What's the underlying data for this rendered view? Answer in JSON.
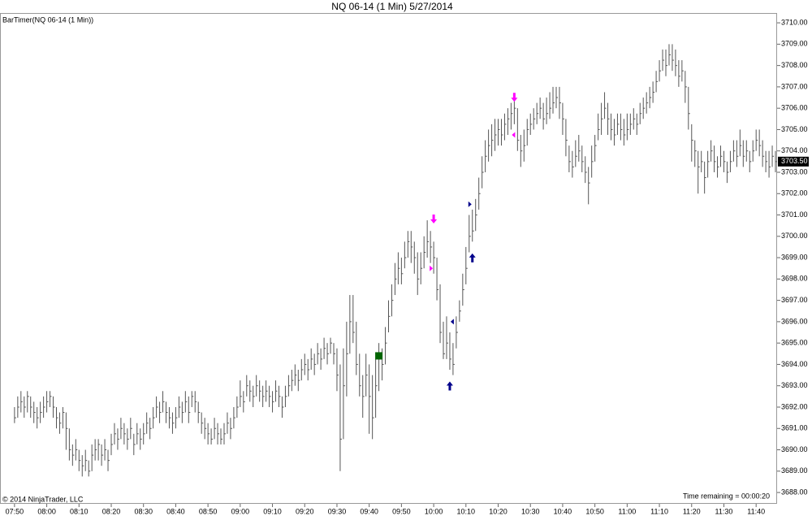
{
  "chart_data": {
    "type": "ohlc",
    "title": "NQ 06-14 (1 Min)  5/27/2014",
    "indicator_label": "BarTimer(NQ 06-14 (1 Min))",
    "copyright": "© 2014 NinjaTrader, LLC",
    "timer_text": "Time remaining = 00:00:20",
    "bar_color": "#555555",
    "xlim": [
      -4.5,
      236.5
    ],
    "ylim": [
      3687.47,
      3710.46
    ],
    "xticks": [
      {
        "value": 0,
        "label": "07:50"
      },
      {
        "value": 10,
        "label": "08:00"
      },
      {
        "value": 20,
        "label": "08:10"
      },
      {
        "value": 30,
        "label": "08:20"
      },
      {
        "value": 40,
        "label": "08:30"
      },
      {
        "value": 50,
        "label": "08:40"
      },
      {
        "value": 60,
        "label": "08:50"
      },
      {
        "value": 70,
        "label": "09:00"
      },
      {
        "value": 80,
        "label": "09:10"
      },
      {
        "value": 90,
        "label": "09:20"
      },
      {
        "value": 100,
        "label": "09:30"
      },
      {
        "value": 110,
        "label": "09:40"
      },
      {
        "value": 120,
        "label": "09:50"
      },
      {
        "value": 130,
        "label": "10:00"
      },
      {
        "value": 140,
        "label": "10:10"
      },
      {
        "value": 150,
        "label": "10:20"
      },
      {
        "value": 160,
        "label": "10:30"
      },
      {
        "value": 170,
        "label": "10:40"
      },
      {
        "value": 180,
        "label": "10:50"
      },
      {
        "value": 190,
        "label": "11:00"
      },
      {
        "value": 200,
        "label": "11:10"
      },
      {
        "value": 210,
        "label": "11:20"
      },
      {
        "value": 220,
        "label": "11:30"
      },
      {
        "value": 230,
        "label": "11:40"
      }
    ],
    "yticks": [
      {
        "value": 3688,
        "label": "3688.00"
      },
      {
        "value": 3689,
        "label": "3689.00"
      },
      {
        "value": 3690,
        "label": "3690.00"
      },
      {
        "value": 3691,
        "label": "3691.00"
      },
      {
        "value": 3692,
        "label": "3692.00"
      },
      {
        "value": 3693,
        "label": "3693.00"
      },
      {
        "value": 3694,
        "label": "3694.00"
      },
      {
        "value": 3695,
        "label": "3695.00"
      },
      {
        "value": 3696,
        "label": "3696.00"
      },
      {
        "value": 3697,
        "label": "3697.00"
      },
      {
        "value": 3698,
        "label": "3698.00"
      },
      {
        "value": 3699,
        "label": "3699.00"
      },
      {
        "value": 3700,
        "label": "3700.00"
      },
      {
        "value": 3701,
        "label": "3701.00"
      },
      {
        "value": 3702,
        "label": "3702.00"
      },
      {
        "value": 3703,
        "label": "3703.00"
      },
      {
        "value": 3704,
        "label": "3704.00"
      },
      {
        "value": 3705,
        "label": "3705.00"
      },
      {
        "value": 3706,
        "label": "3706.00"
      },
      {
        "value": 3707,
        "label": "3707.00"
      },
      {
        "value": 3708,
        "label": "3708.00"
      },
      {
        "value": 3709,
        "label": "3709.00"
      },
      {
        "value": 3710,
        "label": "3710.00"
      }
    ],
    "last_price": {
      "value": 3703.5,
      "label": "3703.50"
    },
    "high": [
      3692,
      3692.5,
      3692.75,
      3692.5,
      3692.75,
      3692.5,
      3692.25,
      3692,
      3692.25,
      3692.5,
      3692.75,
      3692.75,
      3692.5,
      3692,
      3691.75,
      3692,
      3691.75,
      3691,
      3690.25,
      3690.5,
      3690,
      3689.75,
      3690,
      3689.5,
      3690.25,
      3690.5,
      3690.5,
      3690.25,
      3690.5,
      3690,
      3690.75,
      3691.25,
      3691,
      3691.5,
      3691.25,
      3691,
      3691.5,
      3690.75,
      3691.25,
      3691,
      3691.25,
      3691.75,
      3691.5,
      3692,
      3692.5,
      3692.25,
      3692.75,
      3692.25,
      3692,
      3691.75,
      3692,
      3692.5,
      3692.25,
      3692.75,
      3692.5,
      3692.75,
      3692.75,
      3692.25,
      3691.75,
      3691.5,
      3691.25,
      3691,
      3691.5,
      3691.25,
      3691,
      3691.25,
      3691.75,
      3691.5,
      3692,
      3692.5,
      3693.25,
      3692.75,
      3693.5,
      3693.25,
      3693,
      3693.5,
      3693.25,
      3693,
      3693.25,
      3693,
      3692.75,
      3693.25,
      3693,
      3692.5,
      3693,
      3693.5,
      3693.75,
      3694,
      3693.75,
      3694.25,
      3694.5,
      3694.25,
      3694.75,
      3694.5,
      3695,
      3694.75,
      3695.25,
      3695,
      3695.25,
      3695,
      3694.75,
      3694,
      3694.75,
      3696,
      3697.25,
      3697.25,
      3696,
      3694.5,
      3693.5,
      3694.5,
      3694,
      3693.5,
      3694.25,
      3695,
      3694.75,
      3695.75,
      3697,
      3697.75,
      3698.75,
      3699.25,
      3699,
      3699.75,
      3700.25,
      3700.25,
      3699.75,
      3699.25,
      3699.25,
      3700,
      3700.75,
      3700.25,
      3699.75,
      3699,
      3697.75,
      3696,
      3696.25,
      3695.5,
      3695,
      3696.25,
      3697,
      3698.25,
      3699.5,
      3701,
      3701.25,
      3701.75,
      3702.75,
      3703.75,
      3704.5,
      3705,
      3705.25,
      3705.5,
      3705.5,
      3705.5,
      3705.75,
      3706,
      3706.25,
      3706.5,
      3706,
      3704.75,
      3705,
      3705.5,
      3705.75,
      3706,
      3706.25,
      3706.5,
      3706.25,
      3706.5,
      3706.75,
      3707,
      3707,
      3707,
      3706.25,
      3705.5,
      3704.25,
      3704,
      3704.5,
      3704.75,
      3704.25,
      3703.75,
      3703.25,
      3704.25,
      3704.75,
      3705.75,
      3706.25,
      3706.75,
      3706.25,
      3705.75,
      3705.5,
      3705.75,
      3705.75,
      3705.5,
      3705.75,
      3705.75,
      3706,
      3705.75,
      3706.25,
      3706.5,
      3706.75,
      3707,
      3707.25,
      3707.75,
      3708.25,
      3708.75,
      3708.75,
      3709,
      3709,
      3708.75,
      3708.25,
      3708.25,
      3707.75,
      3707,
      3705.25,
      3704.5,
      3704,
      3704,
      3703.5,
      3704,
      3704.5,
      3704.25,
      3703.75,
      3704.25,
      3704,
      3703.5,
      3704,
      3704.5,
      3704.5,
      3705,
      3704.5,
      3704.5,
      3704,
      3704.5,
      3705,
      3705,
      3704.5,
      3704,
      3704,
      3704.25,
      3704
    ],
    "low": [
      3691.25,
      3691.5,
      3691.75,
      3691.5,
      3691.75,
      3691.5,
      3691.25,
      3691,
      3691.25,
      3691.5,
      3691.75,
      3692,
      3691.5,
      3691,
      3690.75,
      3691,
      3690,
      3689.5,
      3689.25,
      3689.5,
      3689,
      3688.75,
      3689,
      3688.75,
      3689,
      3689.5,
      3689.5,
      3689.25,
      3689.5,
      3689,
      3689.75,
      3690.25,
      3690,
      3690.5,
      3690.25,
      3690,
      3690.5,
      3689.75,
      3690.25,
      3690,
      3690.25,
      3690.75,
      3690.5,
      3691,
      3691.5,
      3691.25,
      3691.75,
      3691.25,
      3691,
      3690.75,
      3691,
      3691.5,
      3691.25,
      3691.75,
      3691.25,
      3692,
      3691.75,
      3691.25,
      3690.75,
      3690.5,
      3690.25,
      3690.25,
      3690.5,
      3690.25,
      3690.25,
      3690.25,
      3690.75,
      3690.5,
      3691,
      3691.5,
      3692,
      3691.75,
      3692.5,
      3692.25,
      3692,
      3692.5,
      3692.25,
      3692,
      3692.25,
      3692,
      3691.75,
      3692.25,
      3692,
      3691.5,
      3692,
      3692.5,
      3692.75,
      3693,
      3692.75,
      3693.25,
      3693.5,
      3693.25,
      3693.75,
      3693.5,
      3694,
      3693.75,
      3694.25,
      3694,
      3694.5,
      3694,
      3692.75,
      3689,
      3690.5,
      3692.5,
      3694.5,
      3695,
      3693.5,
      3692.5,
      3691.5,
      3692.5,
      3690.75,
      3690.5,
      3691.5,
      3692.75,
      3693.25,
      3694,
      3695.5,
      3696.25,
      3697.25,
      3697.75,
      3697.75,
      3698.5,
      3699,
      3698.75,
      3698.25,
      3697.25,
      3697.75,
      3698.5,
      3699,
      3698.75,
      3698.25,
      3697,
      3695,
      3694.25,
      3694.25,
      3693.75,
      3693.5,
      3694.75,
      3696,
      3696.75,
      3697.75,
      3699.25,
      3699.75,
      3700.25,
      3701.25,
      3702.25,
      3703,
      3703.5,
      3703.75,
      3704,
      3704.25,
      3704.25,
      3704.5,
      3704.75,
      3705,
      3705.25,
      3704,
      3703.25,
      3703.5,
      3704.25,
      3704.75,
      3705,
      3705.25,
      3705.5,
      3705,
      3705.25,
      3705.5,
      3705.75,
      3706,
      3705.5,
      3704.75,
      3703.75,
      3703,
      3702.75,
      3703.25,
      3703.5,
      3703,
      3702.5,
      3701.5,
      3702.75,
      3703.5,
      3704.5,
      3704.75,
      3705.5,
      3704.75,
      3704.5,
      3704.25,
      3704.75,
      3704.5,
      3704.25,
      3704.5,
      3704.75,
      3705,
      3704.75,
      3705.25,
      3705.5,
      3705.75,
      3706,
      3706.25,
      3706.75,
      3707.25,
      3707.75,
      3707.5,
      3708,
      3707.75,
      3707.5,
      3707,
      3707.25,
      3706.25,
      3705,
      3703.5,
      3703.25,
      3702,
      3703,
      3702,
      3702.75,
      3703.5,
      3703,
      3702.75,
      3703.25,
      3703,
      3702.5,
      3703,
      3703.5,
      3703.25,
      3703.75,
      3703.25,
      3703.5,
      3703,
      3703.5,
      3704,
      3703.75,
      3703.25,
      3703,
      3702.75,
      3703.25,
      3703
    ],
    "close": [
      3691.5,
      3692,
      3692.25,
      3692,
      3692.5,
      3692,
      3691.75,
      3691.5,
      3691.75,
      3692,
      3692.25,
      3692.5,
      3692,
      3691.5,
      3691.25,
      3691.75,
      3691,
      3690,
      3689.75,
      3690,
      3689.5,
      3689.25,
      3689.5,
      3689,
      3689.75,
      3690,
      3690.25,
      3689.75,
      3690,
      3689.5,
      3690.25,
      3690.75,
      3690.5,
      3691,
      3690.75,
      3690.5,
      3691,
      3690.25,
      3690.75,
      3690.5,
      3690.75,
      3691.25,
      3691,
      3691.5,
      3692,
      3691.75,
      3692.25,
      3691.75,
      3691.5,
      3691.25,
      3691.5,
      3692,
      3691.75,
      3692.25,
      3691.75,
      3692.5,
      3692.25,
      3691.75,
      3691.25,
      3691,
      3690.75,
      3690.5,
      3691,
      3690.75,
      3690.5,
      3690.75,
      3691.25,
      3691,
      3691.5,
      3692,
      3692.5,
      3692.25,
      3693,
      3692.75,
      3692.5,
      3693,
      3692.75,
      3692.5,
      3692.75,
      3692.5,
      3692.25,
      3692.75,
      3692.5,
      3692,
      3692.5,
      3693,
      3693.25,
      3693.5,
      3693.25,
      3693.75,
      3694,
      3693.75,
      3694.25,
      3694,
      3694.5,
      3694.25,
      3694.75,
      3694.5,
      3695,
      3694.5,
      3693.5,
      3690.5,
      3693,
      3694.5,
      3696,
      3695.5,
      3694,
      3693,
      3692.5,
      3693.5,
      3692.5,
      3691.5,
      3693,
      3694.25,
      3694,
      3695,
      3696.25,
      3697,
      3698,
      3698.5,
      3698.25,
      3699,
      3699.75,
      3699.5,
      3699,
      3698,
      3698.5,
      3699.25,
      3699.75,
      3699.5,
      3699,
      3697.5,
      3695.5,
      3694.5,
      3695,
      3694.25,
      3694,
      3695.5,
      3696.5,
      3697.5,
      3698.5,
      3700,
      3700.25,
      3701,
      3702,
      3703,
      3703.75,
      3704.25,
      3704.5,
      3704.75,
      3705,
      3704.75,
      3705.25,
      3705.5,
      3705.75,
      3706,
      3704.5,
      3704,
      3704.25,
      3705,
      3705.25,
      3705.5,
      3705.75,
      3706,
      3705.5,
      3705.75,
      3706,
      3706.25,
      3706.5,
      3706.25,
      3705.5,
      3704.5,
      3703.5,
      3703.25,
      3703.75,
      3704,
      3703.5,
      3703,
      3702.5,
      3703.5,
      3704.25,
      3705,
      3705.5,
      3706,
      3705.5,
      3705,
      3704.75,
      3705.25,
      3705,
      3704.75,
      3705,
      3705.25,
      3705.5,
      3705.25,
      3705.75,
      3706,
      3706.25,
      3706.5,
      3706.75,
      3707.25,
      3707.75,
      3708.25,
      3708,
      3708.5,
      3708.25,
      3708,
      3707.5,
      3707.75,
      3707,
      3705.75,
      3704.5,
      3704,
      3703.25,
      3703.5,
      3702.75,
      3703.5,
      3704,
      3703.5,
      3703.25,
      3703.75,
      3703.5,
      3703,
      3703.5,
      3704,
      3703.75,
      3704.25,
      3703.75,
      3704,
      3703.5,
      3704,
      3704.5,
      3704.25,
      3703.75,
      3703.5,
      3703.25,
      3703.75,
      3703.5
    ],
    "square_markers": {
      "x": [
        113
      ],
      "y": [
        3694.4
      ],
      "color": "#006400"
    },
    "down_arrows": {
      "x": [
        130,
        155
      ],
      "y": [
        3700.6,
        3706.3
      ],
      "color": "#ff00ff"
    },
    "up_arrows": {
      "x": [
        135,
        142
      ],
      "y": [
        3693.2,
        3699.2
      ],
      "color": "#00008b"
    },
    "triangles": {
      "x": [
        129,
        136,
        141,
        155
      ],
      "y": [
        3698.5,
        3696,
        3701.5,
        3704.75
      ],
      "colors": [
        "#ff00ff",
        "#00008b",
        "#00008b",
        "#ff00ff"
      ],
      "directions": [
        "right",
        "left",
        "right",
        "left"
      ]
    }
  }
}
